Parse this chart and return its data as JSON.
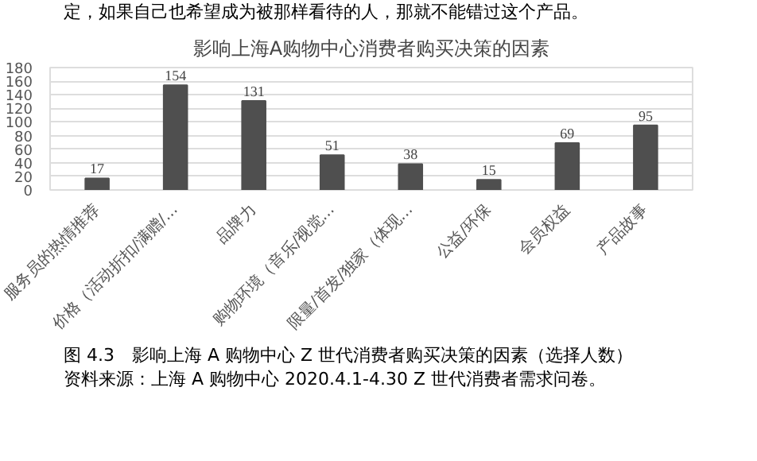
{
  "chart_data": {
    "type": "bar",
    "title": "影响上海A购物中心消费者购买决策的因素",
    "categories": [
      "服务员的热情推荐",
      "价格（活动折扣/满赠/...",
      "品牌力",
      "购物环境（音乐/视觉...",
      "限量/首发/独家（体现...",
      "公益/环保",
      "会员权益",
      "产品故事"
    ],
    "values": [
      17,
      154,
      131,
      51,
      38,
      15,
      69,
      95
    ],
    "color": "#4f4f4f",
    "ylim": [
      0,
      180
    ],
    "yticks": [
      0,
      20,
      40,
      60,
      80,
      100,
      120,
      140,
      160,
      180
    ],
    "grid": "y",
    "data_labels": true,
    "annotations": [
      "定，如果自己也希望成为被那样看待的人，那就不能错过这个产品。",
      "图 4.3　影响上海 A 购物中心 Z 世代消费者购买决策的因素（选择人数）",
      "资料来源：上海 A 购物中心 2020.4.1-4.30 Z 世代消费者需求问卷。"
    ]
  }
}
